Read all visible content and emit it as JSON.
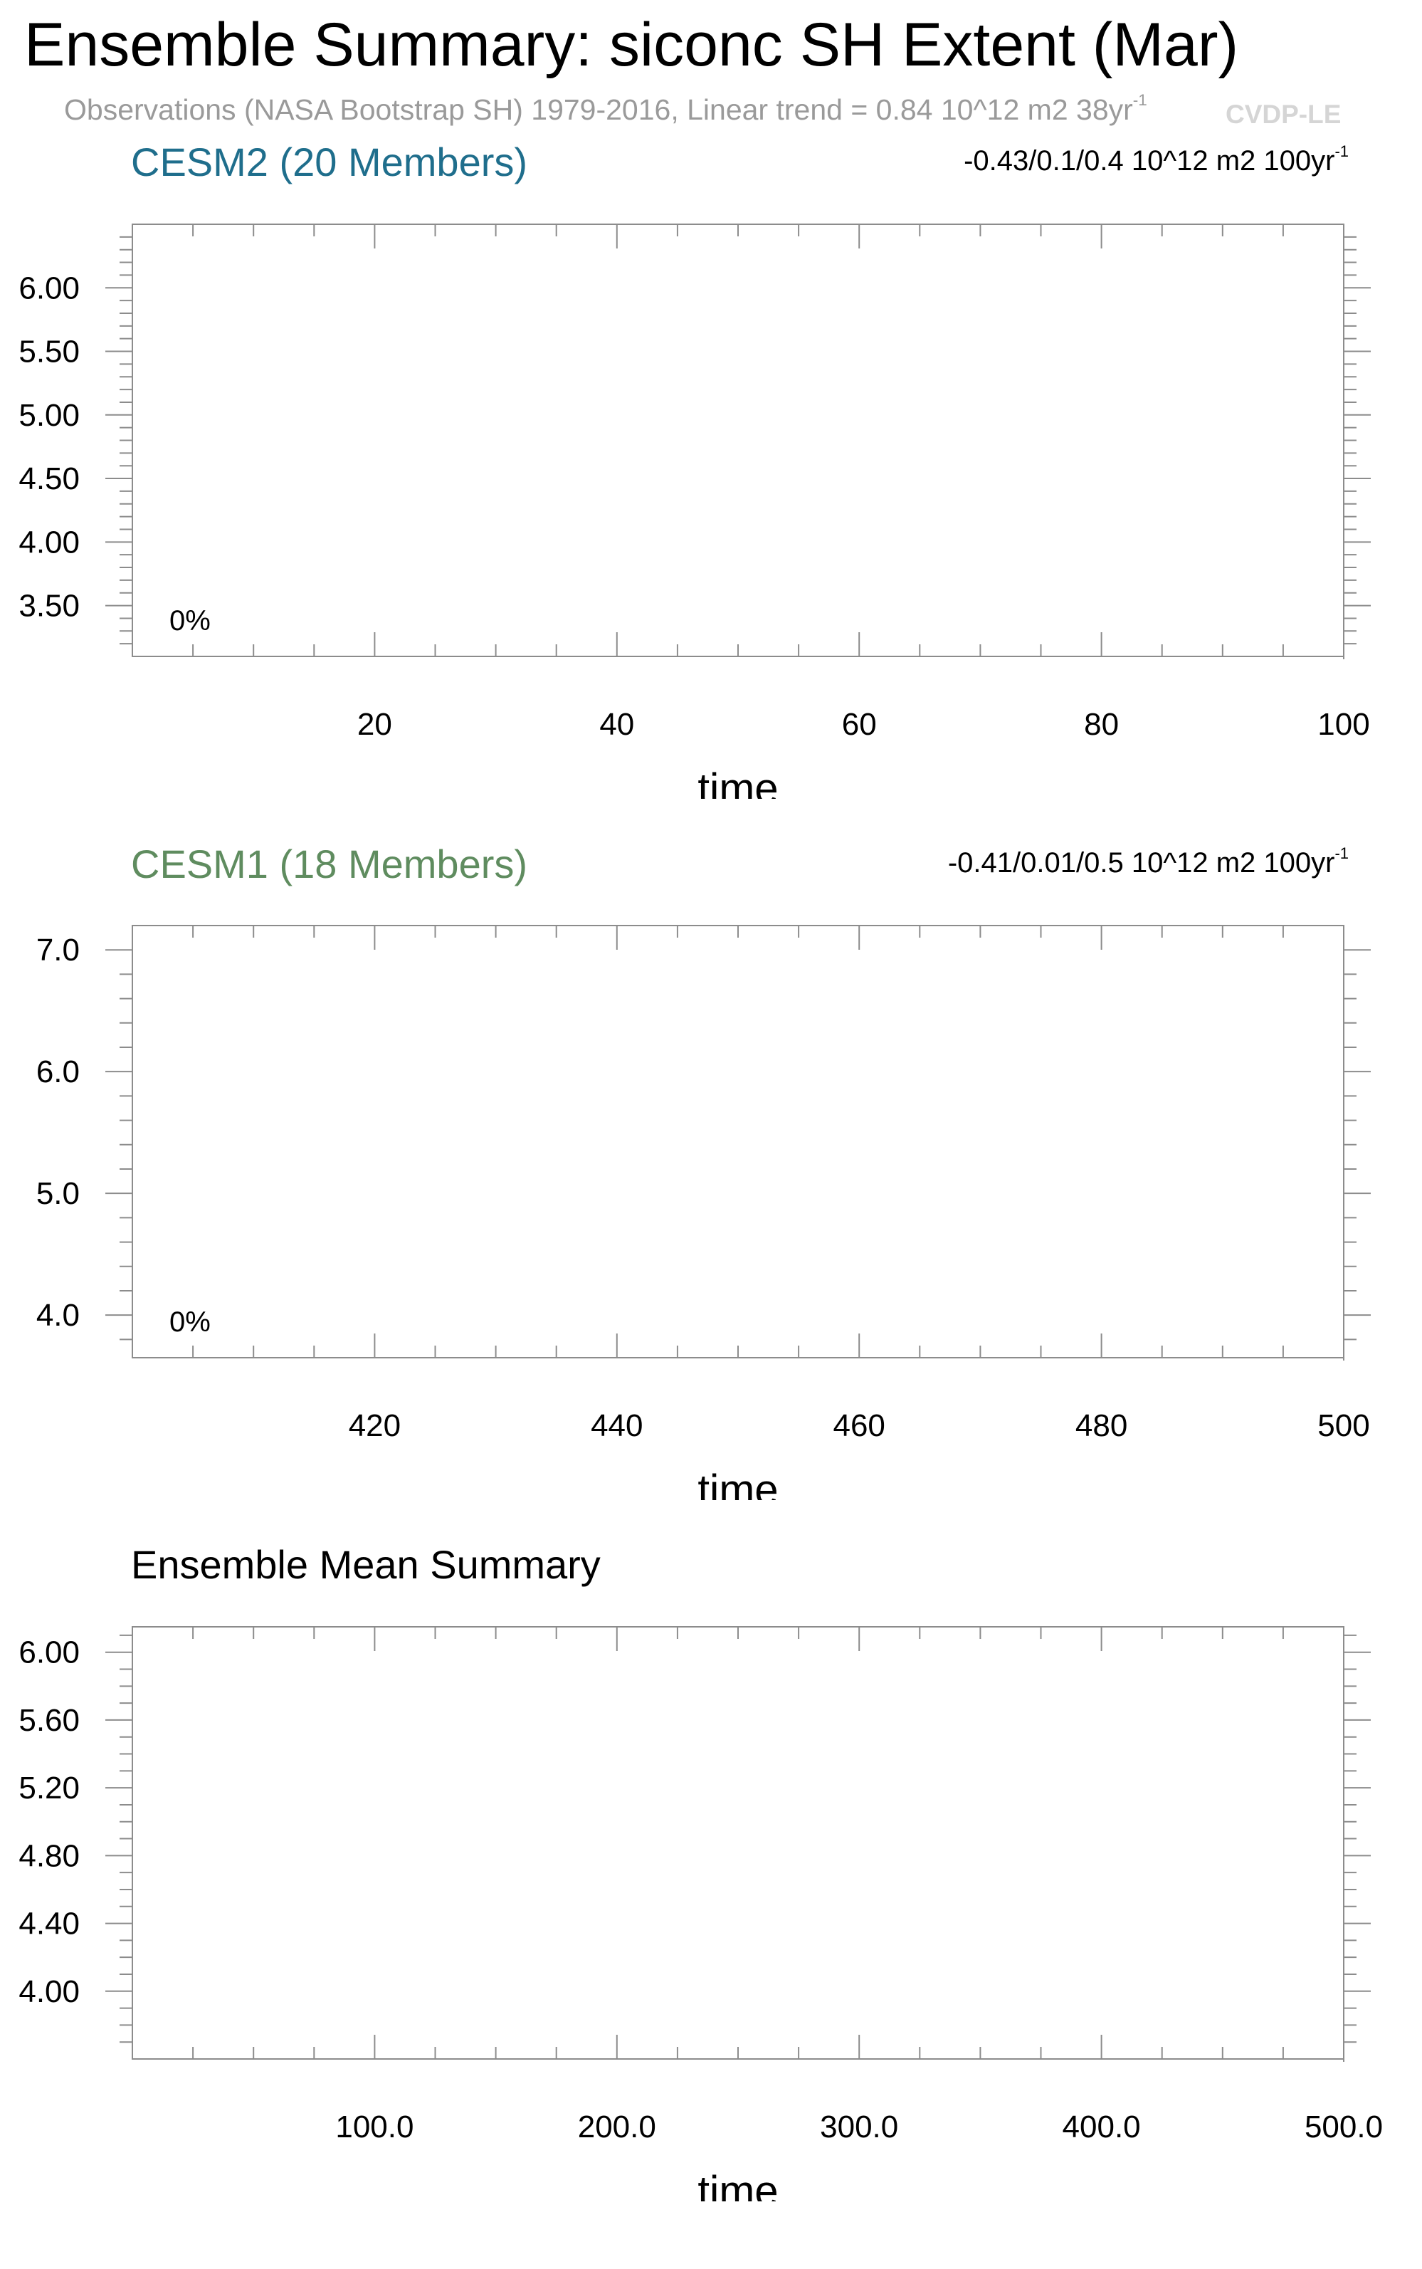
{
  "header": {
    "title": "Ensemble Summary: siconc SH Extent (Mar)",
    "subtitle": "Observations (NASA Bootstrap SH) 1979-2016, Linear trend = 0.84 10^12 m2 38yr",
    "subtitle_superscript": "-1",
    "watermark": "CVDP-LE"
  },
  "colors": {
    "cesm2": "#1f6e8c",
    "cesm1": "#5f8c5f",
    "axis": "#8c8c8c",
    "subtitle": "#9a9a9a",
    "watermark": "#d5d5d5"
  },
  "chart_data": [
    {
      "type": "line",
      "title": "CESM2 (20 Members)",
      "trend_text": "-0.43/0.1/0.4 10^12 m2 100yr",
      "trend_superscript": "-1",
      "annotation": "0%",
      "xlabel": "time",
      "ylabel": "",
      "xlim": [
        0,
        100
      ],
      "ylim": [
        3.1,
        6.5
      ],
      "xticks": [
        20,
        40,
        60,
        80,
        100
      ],
      "xtick_labels": [
        "20",
        "40",
        "60",
        "80",
        "100"
      ],
      "xminor_step": 5,
      "yticks": [
        3.5,
        4.0,
        4.5,
        5.0,
        5.5,
        6.0
      ],
      "ytick_labels": [
        "3.50",
        "4.00",
        "4.50",
        "5.00",
        "5.50",
        "6.00"
      ],
      "yminor_step": 0.1,
      "series": []
    },
    {
      "type": "line",
      "title": "CESM1 (18 Members)",
      "trend_text": "-0.41/0.01/0.5 10^12 m2 100yr",
      "trend_superscript": "-1",
      "annotation": "0%",
      "xlabel": "time",
      "ylabel": "",
      "xlim": [
        400,
        500
      ],
      "ylim": [
        3.65,
        7.2
      ],
      "xticks": [
        420,
        440,
        460,
        480,
        500
      ],
      "xtick_labels": [
        "420",
        "440",
        "460",
        "480",
        "500"
      ],
      "xminor_step": 5,
      "yticks": [
        4.0,
        5.0,
        6.0,
        7.0
      ],
      "ytick_labels": [
        "4.0",
        "5.0",
        "6.0",
        "7.0"
      ],
      "yminor_step": 0.2,
      "series": []
    },
    {
      "type": "line",
      "title": "Ensemble Mean Summary",
      "trend_text": "",
      "trend_superscript": "",
      "annotation": "",
      "xlabel": "time",
      "ylabel": "",
      "xlim": [
        0,
        500
      ],
      "ylim": [
        3.6,
        6.15
      ],
      "xticks": [
        100,
        200,
        300,
        400,
        500
      ],
      "xtick_labels": [
        "100.0",
        "200.0",
        "300.0",
        "400.0",
        "500.0"
      ],
      "xminor_step": 25,
      "yticks": [
        4.0,
        4.4,
        4.8,
        5.2,
        5.6,
        6.0
      ],
      "ytick_labels": [
        "4.00",
        "4.40",
        "4.80",
        "5.20",
        "5.60",
        "6.00"
      ],
      "yminor_step": 0.1,
      "series": []
    }
  ]
}
